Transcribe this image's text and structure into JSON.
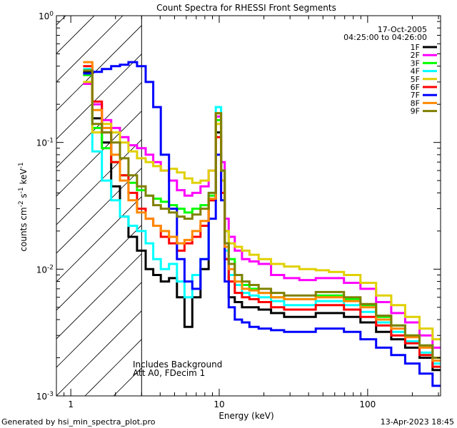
{
  "chart_data": {
    "type": "line",
    "title": "Count Spectra for RHESSI Front Segments",
    "date": "17-Oct-2005",
    "time_range": "04:25:00 to 04:26:00",
    "xlabel": "Energy (keV)",
    "ylabel_parts": {
      "base": "counts cm",
      "exp1": "-2",
      "mid": " s",
      "exp2": "-1",
      "mid2": " keV",
      "exp3": "-1"
    },
    "x_scale": "log",
    "y_scale": "log",
    "xlim": [
      0.8,
      310
    ],
    "ylim": [
      0.001,
      1.0
    ],
    "x_ticks": [
      {
        "value": 1,
        "label": "1"
      },
      {
        "value": 10,
        "label": "10"
      },
      {
        "value": 100,
        "label": "100"
      }
    ],
    "y_ticks": [
      {
        "value": 0.001,
        "base": "10",
        "exp": "-3"
      },
      {
        "value": 0.01,
        "base": "10",
        "exp": "-2"
      },
      {
        "value": 0.1,
        "base": "10",
        "exp": "-1"
      },
      {
        "value": 1.0,
        "base": "10",
        "exp": "0"
      }
    ],
    "shaded_region_max_keV": 3,
    "annotations": [
      "Includes Background",
      "Att A0, FDecim 1"
    ],
    "energy_keV": [
      1.3,
      1.5,
      1.75,
      2.0,
      2.3,
      2.6,
      3.0,
      3.4,
      3.8,
      4.3,
      4.9,
      5.5,
      6.2,
      7.0,
      8.0,
      9.0,
      10.0,
      10.6,
      11.2,
      12.0,
      13.5,
      15,
      17,
      20,
      25,
      30,
      40,
      50,
      60,
      80,
      100,
      130,
      160,
      200,
      250,
      300
    ],
    "series": [
      {
        "name": "1F",
        "color": "#000000",
        "values": [
          0.36,
          0.155,
          0.1,
          0.045,
          0.026,
          0.018,
          0.014,
          0.01,
          0.009,
          0.008,
          0.0085,
          0.006,
          0.0035,
          0.006,
          0.01,
          0.035,
          0.12,
          0.05,
          0.012,
          0.006,
          0.0055,
          0.005,
          0.005,
          0.0048,
          0.0045,
          0.0042,
          0.0042,
          0.0045,
          0.0045,
          0.0042,
          0.0038,
          0.0032,
          0.0028,
          0.0024,
          0.002,
          0.0016
        ]
      },
      {
        "name": "2F",
        "color": "#ff00ff",
        "values": [
          0.29,
          0.2,
          0.15,
          0.13,
          0.11,
          0.095,
          0.09,
          0.08,
          0.07,
          0.06,
          0.05,
          0.042,
          0.038,
          0.04,
          0.045,
          0.06,
          0.16,
          0.07,
          0.025,
          0.018,
          0.014,
          0.012,
          0.0115,
          0.011,
          0.009,
          0.0085,
          0.0082,
          0.0085,
          0.0085,
          0.0078,
          0.007,
          0.0055,
          0.0045,
          0.0038,
          0.003,
          0.0024
        ]
      },
      {
        "name": "3F",
        "color": "#00ff00",
        "values": [
          0.34,
          0.13,
          0.09,
          0.07,
          0.055,
          0.048,
          0.042,
          0.038,
          0.036,
          0.034,
          0.032,
          0.03,
          0.028,
          0.03,
          0.032,
          0.038,
          0.15,
          0.06,
          0.02,
          0.012,
          0.009,
          0.0075,
          0.007,
          0.0065,
          0.006,
          0.0058,
          0.0058,
          0.0062,
          0.0062,
          0.0058,
          0.0052,
          0.0042,
          0.0036,
          0.003,
          0.0025,
          0.002
        ]
      },
      {
        "name": "4F",
        "color": "#00ffff",
        "values": [
          0.38,
          0.085,
          0.05,
          0.035,
          0.026,
          0.022,
          0.02,
          0.016,
          0.012,
          0.01,
          0.011,
          0.008,
          0.006,
          0.009,
          0.012,
          0.04,
          0.19,
          0.06,
          0.014,
          0.009,
          0.0075,
          0.0065,
          0.0062,
          0.006,
          0.0056,
          0.0052,
          0.0052,
          0.0056,
          0.0056,
          0.0052,
          0.0046,
          0.0038,
          0.0032,
          0.0027,
          0.0022,
          0.0018
        ]
      },
      {
        "name": "5F",
        "color": "#e0d000",
        "values": [
          0.3,
          0.12,
          0.14,
          0.12,
          0.1,
          0.085,
          0.075,
          0.07,
          0.065,
          0.06,
          0.062,
          0.058,
          0.052,
          0.048,
          0.05,
          0.06,
          0.14,
          0.05,
          0.02,
          0.016,
          0.015,
          0.014,
          0.013,
          0.012,
          0.011,
          0.0105,
          0.01,
          0.0098,
          0.0095,
          0.009,
          0.0078,
          0.0062,
          0.0052,
          0.0042,
          0.0034,
          0.0028
        ]
      },
      {
        "name": "6F",
        "color": "#ff0000",
        "values": [
          0.4,
          0.21,
          0.12,
          0.07,
          0.055,
          0.04,
          0.03,
          0.025,
          0.022,
          0.018,
          0.016,
          0.014,
          0.016,
          0.018,
          0.022,
          0.035,
          0.11,
          0.04,
          0.012,
          0.008,
          0.0065,
          0.006,
          0.0058,
          0.0055,
          0.005,
          0.0048,
          0.0048,
          0.0052,
          0.0052,
          0.0048,
          0.0042,
          0.0036,
          0.003,
          0.0026,
          0.0021,
          0.0017
        ]
      },
      {
        "name": "7F",
        "color": "#0000ff",
        "values": [
          0.35,
          0.36,
          0.38,
          0.4,
          0.41,
          0.43,
          0.4,
          0.3,
          0.19,
          0.08,
          0.03,
          0.012,
          0.008,
          0.007,
          0.012,
          0.025,
          0.08,
          0.035,
          0.008,
          0.005,
          0.004,
          0.0038,
          0.0035,
          0.0034,
          0.0033,
          0.0032,
          0.0032,
          0.0034,
          0.0034,
          0.0032,
          0.0028,
          0.0024,
          0.0021,
          0.0018,
          0.0015,
          0.0012
        ]
      },
      {
        "name": "8F",
        "color": "#ff8800",
        "values": [
          0.43,
          0.18,
          0.13,
          0.08,
          0.05,
          0.035,
          0.028,
          0.025,
          0.022,
          0.02,
          0.018,
          0.016,
          0.017,
          0.02,
          0.024,
          0.036,
          0.17,
          0.06,
          0.015,
          0.01,
          0.008,
          0.007,
          0.0068,
          0.0065,
          0.006,
          0.0058,
          0.0058,
          0.006,
          0.006,
          0.0056,
          0.005,
          0.004,
          0.0034,
          0.0029,
          0.0024,
          0.0019
        ]
      },
      {
        "name": "9F",
        "color": "#808000",
        "values": [
          0.37,
          0.14,
          0.12,
          0.1,
          0.075,
          0.055,
          0.045,
          0.038,
          0.032,
          0.03,
          0.028,
          0.026,
          0.025,
          0.027,
          0.03,
          0.04,
          0.17,
          0.06,
          0.016,
          0.011,
          0.009,
          0.008,
          0.0075,
          0.007,
          0.0065,
          0.0062,
          0.0062,
          0.0066,
          0.0066,
          0.006,
          0.0053,
          0.0043,
          0.0036,
          0.003,
          0.0025,
          0.002
        ]
      }
    ]
  },
  "footer": {
    "generated_by": "Generated by hsi_min_spectra_plot.pro",
    "timestamp": "13-Apr-2023 18:45"
  }
}
